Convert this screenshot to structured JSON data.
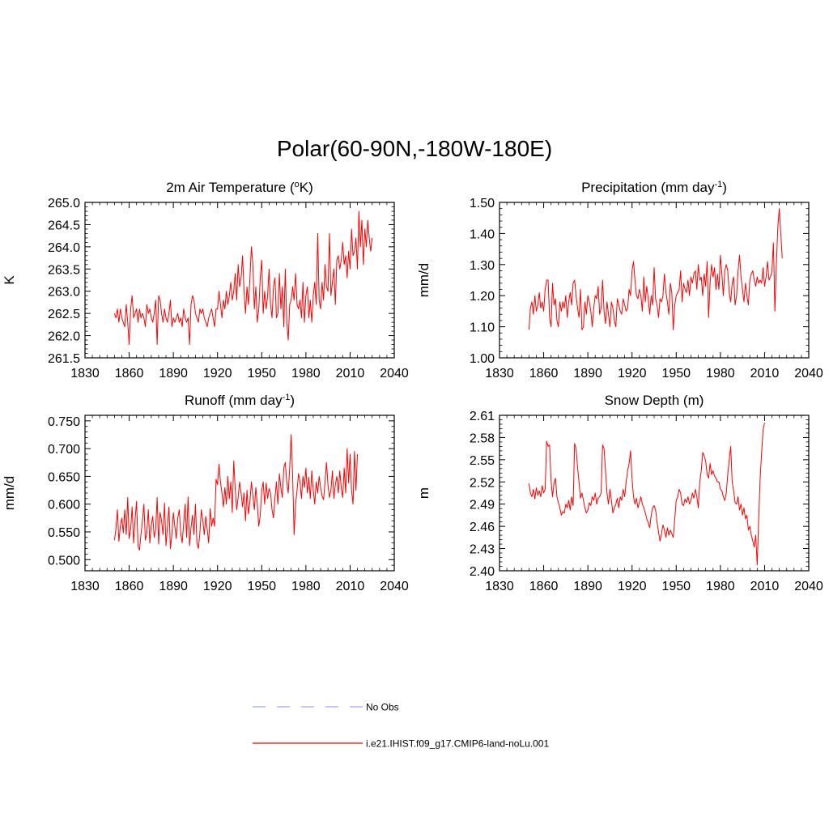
{
  "title": "Polar(60-90N,-180W-180E)",
  "line_color": "#ff0000",
  "obs_color": "#a0a0ff",
  "legend": {
    "entries": [
      {
        "label": "No Obs",
        "style": "dashed",
        "color": "#a0a0ff"
      },
      {
        "label": "i.e21.IHIST.f09_g17.CMIP6-land-noLu.001",
        "style": "solid",
        "color": "#ff0000"
      }
    ]
  },
  "chart_data": [
    {
      "type": "line",
      "title_main": "2m Air Temperature (",
      "title_sup1": "o",
      "title_rest": "K)",
      "ylabel": "K",
      "xlim": [
        1830,
        2040
      ],
      "ylim": [
        261.5,
        265.0
      ],
      "xticks": [
        "1830",
        "1860",
        "1890",
        "1920",
        "1950",
        "1980",
        "2010",
        "2040"
      ],
      "yticks": [
        "261.5",
        "262.0",
        "262.5",
        "263.0",
        "263.5",
        "264.0",
        "264.5",
        "265.0"
      ],
      "series": [
        {
          "x_start": 1850,
          "values": [
            262.5,
            262.4,
            262.6,
            262.3,
            262.6,
            262.4,
            262.3,
            262.2,
            262.7,
            262.3,
            261.8,
            262.6,
            262.9,
            262.4,
            262.5,
            262.6,
            262.3,
            262.6,
            262.4,
            262.5,
            262.4,
            262.2,
            262.7,
            262.5,
            262.6,
            262.4,
            262.3,
            262.5,
            262.8,
            261.8,
            262.9,
            262.8,
            262.5,
            262.3,
            262.6,
            262.4,
            262.3,
            262.5,
            262.8,
            262.2,
            262.4,
            262.3,
            262.4,
            262.5,
            262.3,
            262.4,
            262.2,
            262.6,
            262.4,
            262.3,
            262.4,
            261.8,
            262.7,
            262.9,
            262.8,
            262.5,
            262.4,
            262.3,
            262.6,
            262.5,
            262.6,
            262.4,
            262.3,
            262.2,
            262.4,
            262.5,
            262.6,
            262.4,
            262.2,
            262.6,
            262.6,
            263.0,
            262.7,
            262.4,
            262.8,
            262.6,
            263.0,
            262.7,
            262.9,
            263.2,
            262.8,
            263.0,
            263.4,
            262.8,
            263.6,
            263.1,
            263.3,
            263.8,
            263.0,
            262.5,
            263.1,
            262.7,
            263.3,
            264.0,
            263.6,
            262.6,
            263.1,
            262.3,
            262.6,
            263.3,
            263.7,
            262.5,
            263.0,
            262.6,
            262.9,
            263.5,
            262.7,
            262.4,
            263.1,
            263.3,
            262.4,
            262.5,
            263.4,
            262.6,
            263.1,
            262.2,
            263.5,
            262.3,
            261.9,
            262.7,
            262.8,
            263.1,
            262.8,
            263.4,
            262.7,
            262.6,
            262.8,
            262.4,
            263.2,
            262.3,
            262.9,
            263.1,
            262.4,
            262.8,
            262.3,
            262.9,
            263.2,
            262.7,
            264.3,
            262.8,
            262.6,
            263.2,
            262.8,
            263.6,
            263.1,
            263.0,
            264.3,
            262.9,
            263.2,
            263.5,
            262.7,
            263.7,
            263.8,
            263.5,
            263.7,
            264.1,
            263.6,
            263.8,
            263.3,
            263.9,
            263.5,
            264.4,
            263.8,
            263.9,
            264.2,
            263.5,
            264.8,
            264.0,
            264.6,
            263.6,
            264.4,
            264.0,
            264.6,
            264.2,
            263.9,
            264.2
          ]
        }
      ]
    },
    {
      "type": "line",
      "title_main": "Precipitation (mm day",
      "title_sup1": "-1",
      "title_rest": ")",
      "ylabel": "mm/d",
      "xlim": [
        1830,
        2040
      ],
      "ylim": [
        1.0,
        1.5
      ],
      "xticks": [
        "1830",
        "1860",
        "1890",
        "1920",
        "1950",
        "1980",
        "2010",
        "2040"
      ],
      "yticks": [
        "1.00",
        "1.10",
        "1.20",
        "1.30",
        "1.40",
        "1.50"
      ],
      "series": [
        {
          "x_start": 1850,
          "values": [
            1.09,
            1.16,
            1.18,
            1.14,
            1.2,
            1.15,
            1.17,
            1.21,
            1.16,
            1.18,
            1.15,
            1.22,
            1.25,
            1.25,
            1.13,
            1.1,
            1.24,
            1.17,
            1.19,
            1.12,
            1.1,
            1.18,
            1.15,
            1.18,
            1.16,
            1.2,
            1.13,
            1.18,
            1.21,
            1.17,
            1.24,
            1.25,
            1.2,
            1.16,
            1.13,
            1.22,
            1.09,
            1.1,
            1.18,
            1.14,
            1.2,
            1.18,
            1.15,
            1.1,
            1.16,
            1.2,
            1.19,
            1.23,
            1.14,
            1.16,
            1.25,
            1.15,
            1.11,
            1.18,
            1.14,
            1.1,
            1.18,
            1.16,
            1.12,
            1.1,
            1.19,
            1.17,
            1.15,
            1.14,
            1.19,
            1.17,
            1.15,
            1.16,
            1.22,
            1.2,
            1.28,
            1.31,
            1.25,
            1.2,
            1.19,
            1.22,
            1.2,
            1.15,
            1.26,
            1.18,
            1.23,
            1.19,
            1.14,
            1.2,
            1.17,
            1.29,
            1.19,
            1.17,
            1.13,
            1.19,
            1.18,
            1.2,
            1.27,
            1.21,
            1.18,
            1.14,
            1.24,
            1.21,
            1.09,
            1.17,
            1.2,
            1.21,
            1.22,
            1.28,
            1.18,
            1.24,
            1.22,
            1.21,
            1.25,
            1.2,
            1.26,
            1.24,
            1.27,
            1.28,
            1.22,
            1.3,
            1.25,
            1.26,
            1.2,
            1.27,
            1.23,
            1.31,
            1.13,
            1.24,
            1.3,
            1.26,
            1.29,
            1.22,
            1.27,
            1.22,
            1.33,
            1.27,
            1.2,
            1.28,
            1.3,
            1.28,
            1.21,
            1.18,
            1.24,
            1.26,
            1.17,
            1.2,
            1.28,
            1.33,
            1.26,
            1.22,
            1.18,
            1.24,
            1.2,
            1.17,
            1.25,
            1.27,
            1.28,
            1.25,
            1.23,
            1.26,
            1.24,
            1.25,
            1.24,
            1.29,
            1.23,
            1.26,
            1.31,
            1.25,
            1.26,
            1.28,
            1.37,
            1.15,
            1.3,
            1.42,
            1.48,
            1.4,
            1.32
          ]
        }
      ]
    },
    {
      "type": "line",
      "title_main": "Runoff (mm day",
      "title_sup1": "-1",
      "title_rest": ")",
      "ylabel": "mm/d",
      "xlim": [
        1830,
        2040
      ],
      "ylim": [
        0.48,
        0.76
      ],
      "xticks": [
        "1830",
        "1860",
        "1890",
        "1920",
        "1950",
        "1980",
        "2010",
        "2040"
      ],
      "yticks": [
        "0.500",
        "0.550",
        "0.600",
        "0.650",
        "0.700",
        "0.750"
      ],
      "ytick_values": [
        0.5,
        0.55,
        0.6,
        0.65,
        0.7,
        0.75
      ],
      "series": [
        {
          "x_start": 1850,
          "values": [
            0.535,
            0.555,
            0.59,
            0.533,
            0.56,
            0.575,
            0.548,
            0.59,
            0.545,
            0.612,
            0.538,
            0.555,
            0.595,
            0.53,
            0.572,
            0.605,
            0.525,
            0.517,
            0.545,
            0.57,
            0.6,
            0.535,
            0.548,
            0.59,
            0.53,
            0.562,
            0.578,
            0.54,
            0.555,
            0.612,
            0.528,
            0.585,
            0.57,
            0.545,
            0.602,
            0.525,
            0.56,
            0.595,
            0.52,
            0.545,
            0.585,
            0.56,
            0.538,
            0.575,
            0.59,
            0.548,
            0.53,
            0.565,
            0.6,
            0.54,
            0.613,
            0.525,
            0.558,
            0.58,
            0.545,
            0.6,
            0.53,
            0.52,
            0.548,
            0.59,
            0.57,
            0.545,
            0.578,
            0.555,
            0.53,
            0.592,
            0.56,
            0.575,
            0.56,
            0.645,
            0.635,
            0.672,
            0.64,
            0.62,
            0.595,
            0.63,
            0.6,
            0.65,
            0.61,
            0.64,
            0.585,
            0.678,
            0.628,
            0.59,
            0.612,
            0.64,
            0.62,
            0.595,
            0.62,
            0.57,
            0.625,
            0.582,
            0.605,
            0.64,
            0.615,
            0.59,
            0.63,
            0.6,
            0.56,
            0.58,
            0.625,
            0.64,
            0.6,
            0.638,
            0.61,
            0.628,
            0.62,
            0.59,
            0.575,
            0.612,
            0.64,
            0.6,
            0.655,
            0.63,
            0.612,
            0.665,
            0.675,
            0.64,
            0.62,
            0.665,
            0.725,
            0.65,
            0.545,
            0.6,
            0.625,
            0.655,
            0.64,
            0.61,
            0.65,
            0.63,
            0.665,
            0.62,
            0.648,
            0.61,
            0.66,
            0.625,
            0.6,
            0.64,
            0.62,
            0.65,
            0.63,
            0.615,
            0.608,
            0.64,
            0.675,
            0.635,
            0.612,
            0.625,
            0.66,
            0.61,
            0.635,
            0.65,
            0.62,
            0.66,
            0.63,
            0.612,
            0.665,
            0.62,
            0.7,
            0.638,
            0.69,
            0.625,
            0.6,
            0.695,
            0.625,
            0.69
          ]
        }
      ]
    },
    {
      "type": "line",
      "title_main": "Snow Depth (m)",
      "title_sup1": "",
      "title_rest": "",
      "ylabel": "m",
      "xlim": [
        1830,
        2040
      ],
      "ylim": [
        2.4,
        2.61
      ],
      "xticks": [
        "1830",
        "1860",
        "1890",
        "1920",
        "1950",
        "1980",
        "2010",
        "2040"
      ],
      "yticks": [
        "2.40",
        "2.43",
        "2.46",
        "2.49",
        "2.52",
        "2.55",
        "2.58",
        "2.61"
      ],
      "ytick_values": [
        2.4,
        2.43,
        2.46,
        2.49,
        2.52,
        2.55,
        2.58,
        2.61
      ],
      "series": [
        {
          "x_start": 1850,
          "values": [
            2.518,
            2.505,
            2.5,
            2.51,
            2.497,
            2.512,
            2.502,
            2.508,
            2.5,
            2.515,
            2.505,
            2.51,
            2.575,
            2.568,
            2.57,
            2.522,
            2.5,
            2.518,
            2.525,
            2.5,
            2.492,
            2.485,
            2.475,
            2.48,
            2.478,
            2.49,
            2.485,
            2.495,
            2.482,
            2.5,
            2.488,
            2.572,
            2.565,
            2.54,
            2.52,
            2.498,
            2.505,
            2.495,
            2.485,
            2.478,
            2.482,
            2.492,
            2.488,
            2.5,
            2.495,
            2.505,
            2.49,
            2.498,
            2.5,
            2.505,
            2.57,
            2.565,
            2.535,
            2.505,
            2.49,
            2.51,
            2.495,
            2.478,
            2.485,
            2.49,
            2.498,
            2.485,
            2.5,
            2.495,
            2.51,
            2.5,
            2.52,
            2.535,
            2.545,
            2.562,
            2.525,
            2.5,
            2.49,
            2.498,
            2.485,
            2.492,
            2.5,
            2.49,
            2.485,
            2.478,
            2.47,
            2.465,
            2.458,
            2.475,
            2.485,
            2.488,
            2.482,
            2.465,
            2.452,
            2.44,
            2.45,
            2.462,
            2.455,
            2.445,
            2.458,
            2.448,
            2.455,
            2.45,
            2.445,
            2.47,
            2.495,
            2.5,
            2.51,
            2.505,
            2.49,
            2.488,
            2.497,
            2.492,
            2.5,
            2.49,
            2.495,
            2.505,
            2.498,
            2.51,
            2.5,
            2.485,
            2.52,
            2.535,
            2.56,
            2.555,
            2.548,
            2.53,
            2.525,
            2.545,
            2.53,
            2.535,
            2.528,
            2.525,
            2.52,
            2.52,
            2.51,
            2.508,
            2.5,
            2.495,
            2.505,
            2.53,
            2.55,
            2.568,
            2.52,
            2.508,
            2.492,
            2.49,
            2.5,
            2.482,
            2.49,
            2.475,
            2.485,
            2.47,
            2.475,
            2.455,
            2.46,
            2.448,
            2.44,
            2.432,
            2.448,
            2.408,
            2.47,
            2.525,
            2.56,
            2.59,
            2.6
          ]
        }
      ]
    }
  ]
}
